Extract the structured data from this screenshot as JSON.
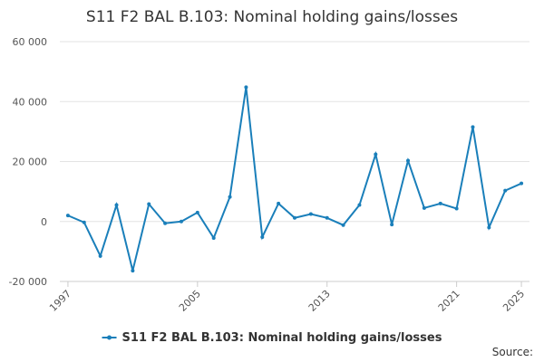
{
  "chart_data": {
    "type": "line",
    "title": "S11 F2 BAL B.103: Nominal holding gains/losses",
    "x": [
      1997,
      1998,
      1999,
      2000,
      2001,
      2002,
      2003,
      2004,
      2005,
      2006,
      2007,
      2008,
      2009,
      2010,
      2011,
      2012,
      2013,
      2014,
      2015,
      2016,
      2017,
      2018,
      2019,
      2020,
      2021,
      2022,
      2023,
      2024,
      2025
    ],
    "series": [
      {
        "name": "S11 F2 BAL B.103: Nominal holding gains/losses",
        "color": "#1a7fba",
        "values": [
          2000,
          -300,
          -11500,
          5500,
          -16400,
          5800,
          -600,
          0,
          3000,
          -5500,
          8200,
          44800,
          -5200,
          6000,
          1200,
          2500,
          1200,
          -1200,
          5500,
          22400,
          -1000,
          20300,
          4500,
          6000,
          4300,
          31500,
          -2000,
          10300,
          12700
        ]
      }
    ],
    "xlim": [
      1996.5,
      2025.5
    ],
    "xticks": [
      1997,
      2005,
      2013,
      2021,
      2025
    ],
    "ylim": [
      -20000,
      60000
    ],
    "yticks": [
      {
        "value": -20000,
        "label": "-20 000"
      },
      0,
      {
        "value": 20000,
        "label": "20 000"
      },
      {
        "value": 40000,
        "label": "40 000"
      },
      {
        "value": 60000,
        "label": "60 000"
      }
    ],
    "grid": true,
    "legend": "bottom",
    "source": "Source:"
  }
}
